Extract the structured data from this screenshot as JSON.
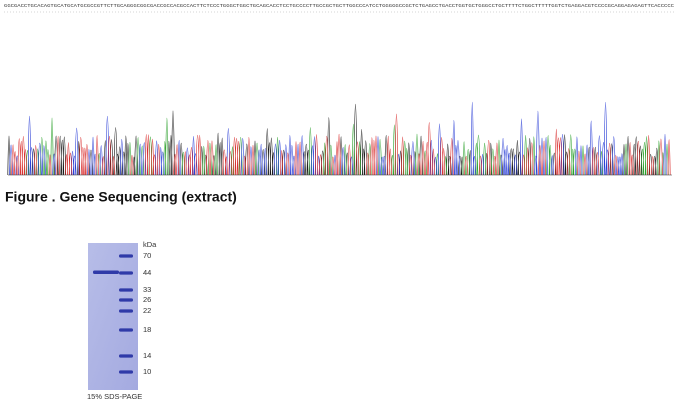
{
  "sequence": "GGCGACCTGCACAGTGCATGCATGCGCCGTTCTTGCAGGGCGGCGACCGCCACGCCACTTCTCCCTGGGCTGGCTGCAGCACCTCCTGCCCCTTGCCGCTGCTTGGCCCATCCTGGGGGCCGCTCTGAGCCTGACCTGGTGCTGGGCCTGCTTTTCTGGCTTTTTGGTCTGAGGACGTCCCCGCAGGAGAGAGTTCACCCCC",
  "figure_caption": "Figure . Gene Sequencing (extract)",
  "gel": {
    "unit": "kDa",
    "markers": [
      "70",
      "44",
      "33",
      "26",
      "22",
      "18",
      "14",
      "10"
    ],
    "caption": "15% SDS-PAGE"
  }
}
